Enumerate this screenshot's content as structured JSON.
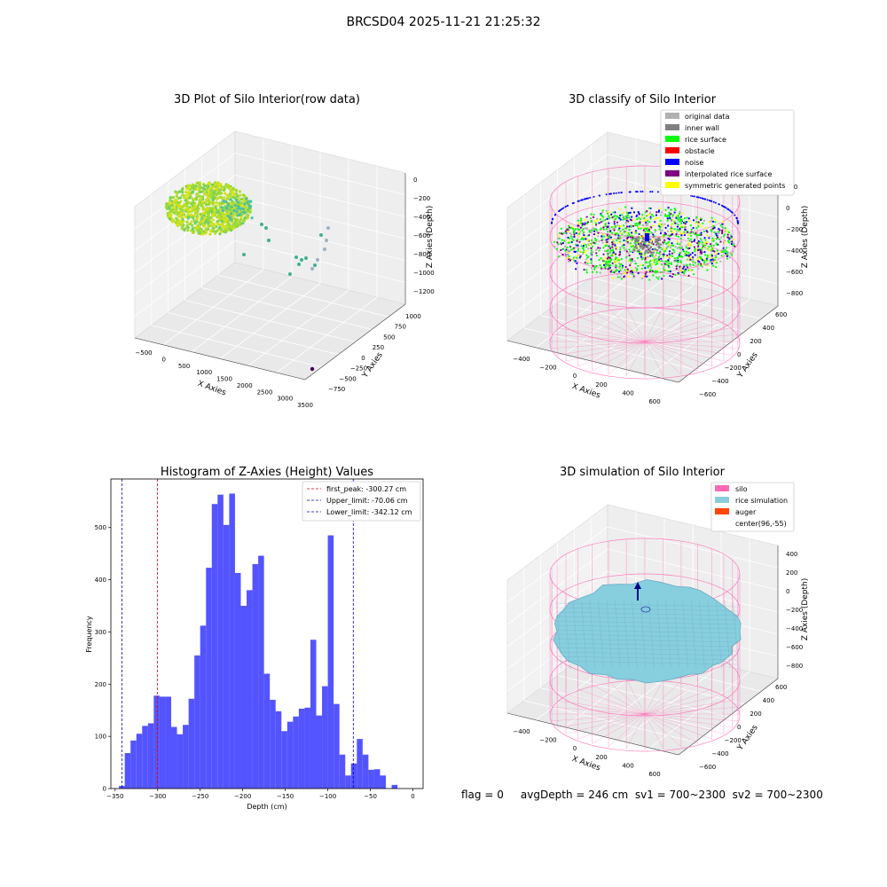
{
  "figure": {
    "title": "BRCSD04 2025-11-21 21:25:32",
    "status_line": "flag = 0     avgDepth = 246 cm  sv1 = 700~2300  sv2 = 700~2300"
  },
  "colors": {
    "hist_bar": "#4b4bff",
    "first_peak_line": "#e00000",
    "limit_line": "#0000b0",
    "silo": "#ff69b4",
    "rice_simulation": "#87cedf",
    "auger": "#ff4500",
    "original": "#b0b0b0",
    "inner_wall": "#808080",
    "rice_surface": "#00ff00",
    "obstacle": "#ff0000",
    "noise": "#0000ff",
    "interpolated": "#800080",
    "symmetric": "#ffff00"
  },
  "chart_data": [
    {
      "type": "scatter",
      "title": "3D Plot of Silo Interior(row data)",
      "xlabel": "X Axies",
      "ylabel": "Y Axies",
      "zlabel": "Z Axies (Depth)",
      "x_ticks": [
        "−500",
        "0",
        "500",
        "1000",
        "1500",
        "2000",
        "2500",
        "3000",
        "3500"
      ],
      "y_ticks": [
        "−750",
        "−500",
        "−250",
        "0",
        "250",
        "500",
        "750",
        "1000"
      ],
      "z_ticks": [
        "0",
        "−200",
        "−400",
        "−600",
        "−800",
        "−1000",
        "−1200"
      ]
    },
    {
      "type": "scatter",
      "title": "3D classify of Silo Interior",
      "xlabel": "X Axies",
      "ylabel": "Y Axies",
      "zlabel": "Z Axies (Depth)",
      "x_ticks": [
        "−400",
        "−200",
        "0",
        "200",
        "400",
        "600"
      ],
      "y_ticks": [
        "−600",
        "−400",
        "−200",
        "0",
        "200",
        "400",
        "600"
      ],
      "z_ticks": [
        "200",
        "0",
        "−200",
        "−400",
        "−600",
        "−800"
      ],
      "legend": [
        "original data",
        "inner wall",
        "rice surface",
        "obstacle",
        "noise",
        "interpolated rice surface",
        "symmetric generated points"
      ],
      "legend_position": "top-right"
    },
    {
      "type": "bar",
      "title": "Histogram of Z-Axies (Height) Values",
      "xlabel": "Depth (cm)",
      "ylabel": "Frequency",
      "xlim": [
        -355,
        12
      ],
      "ylim": [
        0,
        593
      ],
      "x_ticks": [
        -350,
        -300,
        -250,
        -200,
        -150,
        -100,
        -50,
        0
      ],
      "y_ticks": [
        0,
        100,
        200,
        300,
        400,
        500
      ],
      "bin_start": -345.5,
      "bin_width": 6.82,
      "values": [
        5,
        68,
        92,
        105,
        120,
        125,
        178,
        176,
        176,
        118,
        104,
        122,
        172,
        255,
        312,
        423,
        545,
        563,
        505,
        565,
        413,
        350,
        380,
        430,
        446,
        220,
        170,
        148,
        110,
        128,
        138,
        153,
        155,
        285,
        140,
        196,
        485,
        162,
        65,
        25,
        48,
        95,
        65,
        36,
        37,
        25,
        0,
        7
      ],
      "reference_lines": [
        {
          "label": "first_peak: -300.27 cm",
          "x": -300.27,
          "style": "red"
        },
        {
          "label": "Upper_limit: -70.06 cm",
          "x": -70.06,
          "style": "blue"
        },
        {
          "label": "Lower_limit: -342.12 cm",
          "x": -342.12,
          "style": "blue"
        }
      ],
      "legend_position": "top-right"
    },
    {
      "type": "scatter",
      "title": "3D simulation of Silo Interior",
      "xlabel": "X Axies",
      "ylabel": "Y Axies",
      "zlabel": "Z Axies (Depth)",
      "x_ticks": [
        "−400",
        "−200",
        "0",
        "200",
        "400",
        "600"
      ],
      "y_ticks": [
        "−600",
        "−400",
        "−200",
        "0",
        "200",
        "400",
        "600"
      ],
      "z_ticks": [
        "400",
        "200",
        "0",
        "−200",
        "−400",
        "−600",
        "−800"
      ],
      "legend": [
        "silo",
        "rice simulation",
        "auger",
        "center(96,-55)"
      ],
      "legend_position": "top-right"
    }
  ]
}
